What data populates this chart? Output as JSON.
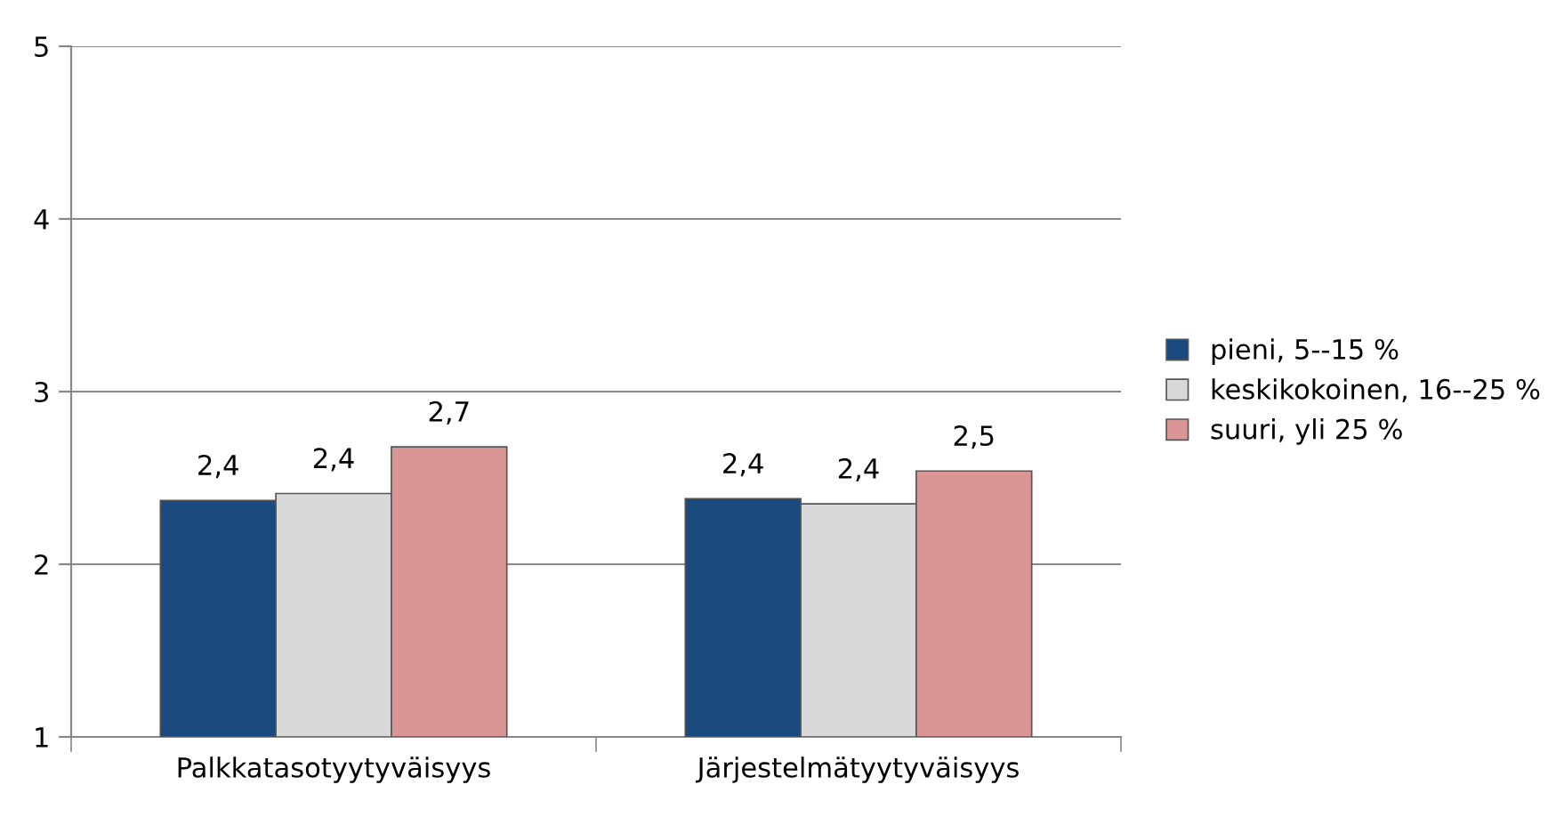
{
  "chart_data": {
    "type": "bar",
    "categories": [
      "Palkkatasotyytyväisyys",
      "Järjestelmätyytyväisyys"
    ],
    "series": [
      {
        "name": "pieni, 5--15 %",
        "color": "#1b4a7e",
        "values": [
          2.37,
          2.38
        ],
        "value_labels": [
          "2,4",
          "2,4"
        ]
      },
      {
        "name": "keskikokoinen, 16--25 %",
        "color": "#d9d9d9",
        "values": [
          2.41,
          2.35
        ],
        "value_labels": [
          "2,4",
          "2,4"
        ]
      },
      {
        "name": "suuri, yli 25 %",
        "color": "#d99694",
        "values": [
          2.68,
          2.54
        ],
        "value_labels": [
          "2,7",
          "2,5"
        ]
      }
    ],
    "ylim": [
      1,
      5
    ],
    "yticks": [
      1,
      2,
      3,
      4,
      5
    ],
    "grid": "y",
    "legend": "right"
  }
}
